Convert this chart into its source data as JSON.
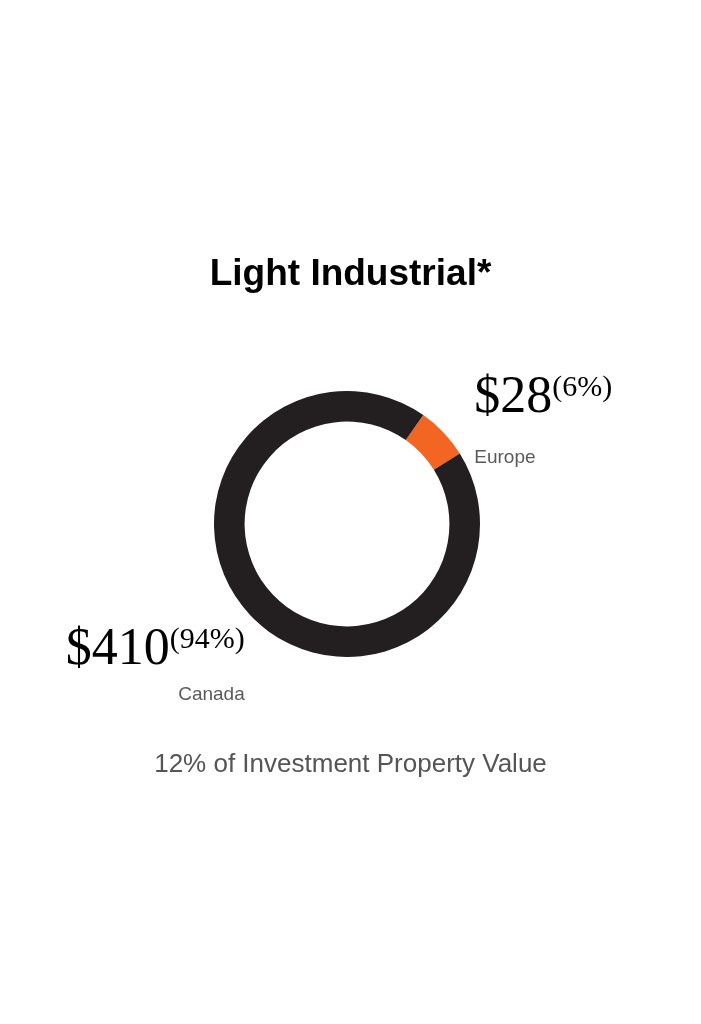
{
  "chart_data": {
    "type": "donut",
    "title": "Light Industrial*",
    "categories": [
      "Europe",
      "Canada"
    ],
    "values": [
      28,
      410
    ],
    "colors": [
      "#f26522",
      "#231f20"
    ],
    "value_labels": [
      "$28$^{(6%)}$",
      "$410$^{(94%)}$"
    ],
    "annotations": [
      "12% of Investment Property Value"
    ]
  }
}
